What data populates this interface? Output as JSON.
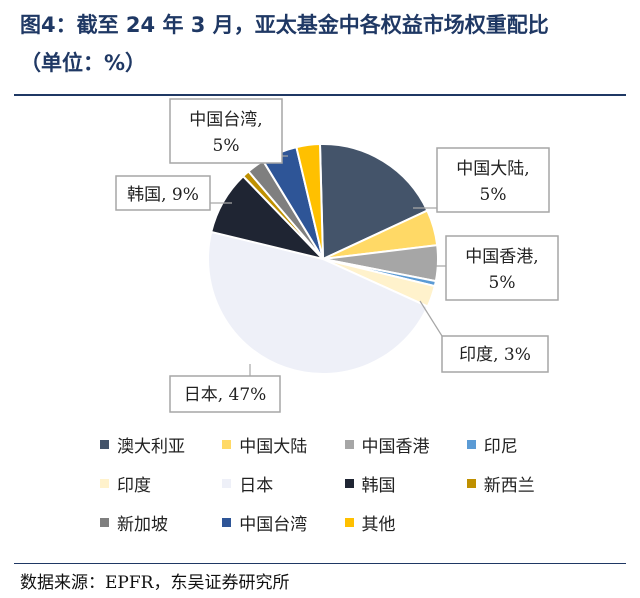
{
  "header": {
    "title_line1": "图4：截至 24 年 3 月，亚太基金中各权益市场权重配比",
    "title_line2": "（单位：%）"
  },
  "footer": {
    "source": "数据来源：EPFR，东吴证券研究所"
  },
  "chart_data": {
    "type": "pie",
    "title": "截至 24 年 3 月，亚太基金中各权益市场权重配比",
    "legend_position": "bottom",
    "slices": [
      {
        "name": "澳大利亚",
        "value": 18.5,
        "color": "#44546a"
      },
      {
        "name": "中国大陆",
        "value": 5,
        "color": "#ffd966",
        "label": "中国大陆,\n5%"
      },
      {
        "name": "中国香港",
        "value": 5,
        "color": "#a6a6a6",
        "label": "中国香港,\n5%"
      },
      {
        "name": "印尼",
        "value": 0.7,
        "color": "#5b9bd5"
      },
      {
        "name": "印度",
        "value": 3,
        "color": "#fff2cc",
        "label": "印度, 3%"
      },
      {
        "name": "日本",
        "value": 47,
        "color": "#eef0f8",
        "label": "日本, 47%"
      },
      {
        "name": "韩国",
        "value": 9,
        "color": "#1f2533",
        "label": "韩国, 9%"
      },
      {
        "name": "新西兰",
        "value": 1,
        "color": "#bf9000"
      },
      {
        "name": "新加坡",
        "value": 2.5,
        "color": "#7f7f7f"
      },
      {
        "name": "中国台湾",
        "value": 5,
        "color": "#2e5597",
        "label": "中国台湾,\n5%"
      },
      {
        "name": "其他",
        "value": 3.3,
        "color": "#ffc000"
      }
    ]
  }
}
